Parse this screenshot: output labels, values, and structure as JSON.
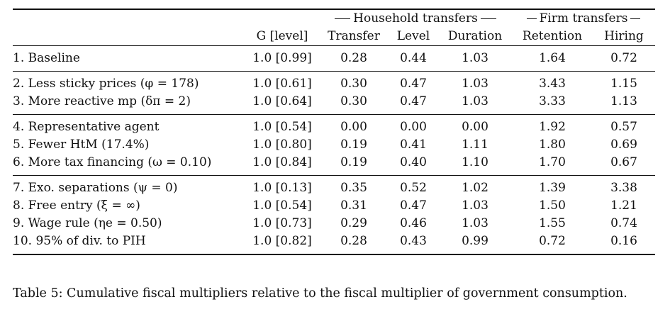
{
  "table": {
    "group_headers": {
      "household": "Household transfers",
      "firm": "Firm transfers"
    },
    "columns": [
      "G [level]",
      "Transfer",
      "Level",
      "Duration",
      "Retention",
      "Hiring"
    ],
    "groups": [
      [
        {
          "label": "1. Baseline",
          "g": "1.0 [0.99]",
          "values": [
            "0.28",
            "0.44",
            "1.03",
            "1.64",
            "0.72"
          ]
        }
      ],
      [
        {
          "label": "2. Less sticky prices (φ = 178)",
          "g": "1.0 [0.61]",
          "values": [
            "0.30",
            "0.47",
            "1.03",
            "3.43",
            "1.15"
          ]
        },
        {
          "label": "3. More reactive mp (δπ = 2)",
          "g": "1.0 [0.64]",
          "values": [
            "0.30",
            "0.47",
            "1.03",
            "3.33",
            "1.13"
          ]
        }
      ],
      [
        {
          "label": "4. Representative agent",
          "g": "1.0 [0.54]",
          "values": [
            "0.00",
            "0.00",
            "0.00",
            "1.92",
            "0.57"
          ]
        },
        {
          "label": "5. Fewer HtM (17.4%)",
          "g": "1.0 [0.80]",
          "values": [
            "0.19",
            "0.41",
            "1.11",
            "1.80",
            "0.69"
          ]
        },
        {
          "label": "6. More tax financing (ω = 0.10)",
          "g": "1.0 [0.84]",
          "values": [
            "0.19",
            "0.40",
            "1.10",
            "1.70",
            "0.67"
          ]
        }
      ],
      [
        {
          "label": "7. Exo. separations (ψ = 0)",
          "g": "1.0 [0.13]",
          "values": [
            "0.35",
            "0.52",
            "1.02",
            "1.39",
            "3.38"
          ]
        },
        {
          "label": "8. Free entry (ξ = ∞)",
          "g": "1.0 [0.54]",
          "values": [
            "0.31",
            "0.47",
            "1.03",
            "1.50",
            "1.21"
          ]
        },
        {
          "label": "9. Wage rule (ηe = 0.50)",
          "g": "1.0 [0.73]",
          "values": [
            "0.29",
            "0.46",
            "1.03",
            "1.55",
            "0.74"
          ]
        },
        {
          "label": "10. 95% of div. to PIH",
          "g": "1.0 [0.82]",
          "values": [
            "0.28",
            "0.43",
            "0.99",
            "0.72",
            "0.16"
          ]
        }
      ]
    ]
  },
  "caption": "Table 5: Cumulative fiscal multipliers relative to the fiscal multiplier of government consumption."
}
